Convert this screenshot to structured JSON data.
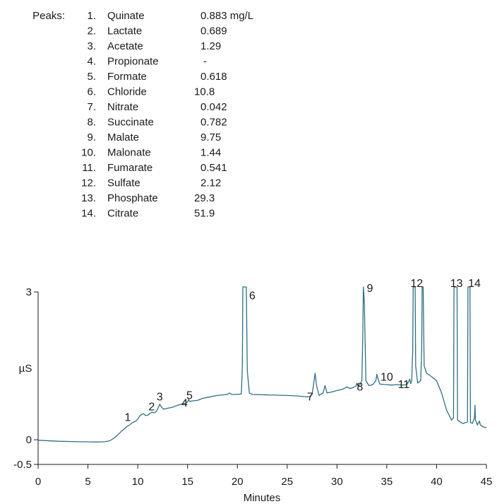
{
  "chart_data": {
    "type": "line",
    "title": "",
    "xlabel": "Minutes",
    "ylabel": "µS",
    "xlim": [
      0,
      45
    ],
    "ylim": [
      -0.5,
      3
    ],
    "xticks": [
      "0",
      "5",
      "10",
      "15",
      "20",
      "25",
      "30",
      "35",
      "40",
      "45"
    ],
    "yticks": [
      "3",
      "0",
      "-0.5"
    ],
    "grid": false,
    "line_color": "#2f6f83",
    "peaks_title": "Peaks:",
    "peak_table": [
      {
        "number": "1.",
        "name": "Quinate",
        "amount": "0.883 mg/L"
      },
      {
        "number": "2.",
        "name": "Lactate",
        "amount": "0.689"
      },
      {
        "number": "3.",
        "name": "Acetate",
        "amount": "1.29"
      },
      {
        "number": "4.",
        "name": "Propionate",
        "amount": "-"
      },
      {
        "number": "5.",
        "name": "Formate",
        "amount": "0.618"
      },
      {
        "number": "6.",
        "name": "Chloride",
        "amount": "10.8"
      },
      {
        "number": "7.",
        "name": "Nitrate",
        "amount": "0.042"
      },
      {
        "number": "8.",
        "name": "Succinate",
        "amount": "0.782"
      },
      {
        "number": "9.",
        "name": "Malate",
        "amount": "9.75"
      },
      {
        "number": "10.",
        "name": "Malonate",
        "amount": "1.44"
      },
      {
        "number": "11.",
        "name": "Fumarate",
        "amount": "0.541"
      },
      {
        "number": "12.",
        "name": "Sulfate",
        "amount": "2.12"
      },
      {
        "number": "13.",
        "name": "Phosphate",
        "amount": "29.3"
      },
      {
        "number": "14.",
        "name": "Citrate",
        "amount": "51.9"
      }
    ],
    "peak_labels": [
      {
        "label": "1",
        "x": 9.0,
        "y": 0.38
      },
      {
        "label": "2",
        "x": 11.4,
        "y": 0.6
      },
      {
        "label": "3",
        "x": 12.2,
        "y": 0.8
      },
      {
        "label": "4",
        "x": 14.7,
        "y": 0.67
      },
      {
        "label": "5",
        "x": 15.2,
        "y": 0.83
      },
      {
        "label": "6",
        "x": 21.5,
        "y": 2.85
      },
      {
        "label": "7",
        "x": 27.3,
        "y": 0.8
      },
      {
        "label": "8",
        "x": 32.3,
        "y": 1.0
      },
      {
        "label": "9",
        "x": 33.3,
        "y": 3.0
      },
      {
        "label": "10",
        "x": 35.0,
        "y": 1.2
      },
      {
        "label": "11",
        "x": 36.7,
        "y": 1.05
      },
      {
        "label": "12",
        "x": 38.0,
        "y": 3.1
      },
      {
        "label": "13",
        "x": 42.0,
        "y": 3.1
      },
      {
        "label": "14",
        "x": 43.8,
        "y": 3.1
      }
    ],
    "series": [
      {
        "points": [
          [
            0.0,
            -0.01
          ],
          [
            2.0,
            -0.03
          ],
          [
            4.0,
            -0.04
          ],
          [
            6.0,
            -0.045
          ],
          [
            6.7,
            -0.04
          ],
          [
            7.2,
            -0.02
          ],
          [
            7.6,
            0.03
          ],
          [
            8.0,
            0.1
          ],
          [
            8.4,
            0.18
          ],
          [
            8.8,
            0.25
          ],
          [
            9.0,
            0.28
          ],
          [
            9.2,
            0.3
          ],
          [
            9.4,
            0.34
          ],
          [
            9.6,
            0.36
          ],
          [
            9.8,
            0.38
          ],
          [
            10.0,
            0.42
          ],
          [
            10.2,
            0.48
          ],
          [
            10.4,
            0.52
          ],
          [
            10.6,
            0.53
          ],
          [
            10.8,
            0.49
          ],
          [
            11.0,
            0.5
          ],
          [
            11.2,
            0.53
          ],
          [
            11.4,
            0.56
          ],
          [
            11.6,
            0.55
          ],
          [
            11.8,
            0.56
          ],
          [
            12.0,
            0.62
          ],
          [
            12.2,
            0.72
          ],
          [
            12.4,
            0.66
          ],
          [
            12.6,
            0.62
          ],
          [
            13.0,
            0.64
          ],
          [
            13.5,
            0.66
          ],
          [
            14.0,
            0.7
          ],
          [
            14.4,
            0.72
          ],
          [
            14.6,
            0.74
          ],
          [
            14.8,
            0.74
          ],
          [
            15.0,
            0.77
          ],
          [
            15.1,
            0.82
          ],
          [
            15.2,
            0.78
          ],
          [
            15.5,
            0.79
          ],
          [
            16.0,
            0.8
          ],
          [
            16.5,
            0.84
          ],
          [
            17.0,
            0.86
          ],
          [
            18.0,
            0.9
          ],
          [
            19.0,
            0.92
          ],
          [
            19.2,
            0.95
          ],
          [
            19.4,
            0.92
          ],
          [
            20.0,
            0.92
          ],
          [
            20.4,
            0.93
          ],
          [
            20.5,
            1.5
          ],
          [
            20.55,
            3.1
          ],
          [
            20.9,
            3.1
          ],
          [
            21.0,
            1.4
          ],
          [
            21.2,
            0.95
          ],
          [
            21.5,
            0.92
          ],
          [
            23.0,
            0.91
          ],
          [
            25.0,
            0.9
          ],
          [
            26.0,
            0.89
          ],
          [
            27.0,
            0.87
          ],
          [
            27.3,
            0.88
          ],
          [
            27.5,
            0.92
          ],
          [
            27.7,
            1.2
          ],
          [
            27.8,
            1.35
          ],
          [
            27.95,
            1.1
          ],
          [
            28.2,
            0.9
          ],
          [
            28.6,
            0.95
          ],
          [
            28.8,
            1.1
          ],
          [
            29.0,
            0.95
          ],
          [
            29.5,
            0.97
          ],
          [
            30.0,
            1.0
          ],
          [
            30.5,
            1.02
          ],
          [
            30.8,
            1.05
          ],
          [
            31.0,
            1.07
          ],
          [
            31.3,
            1.04
          ],
          [
            31.6,
            1.06
          ],
          [
            31.9,
            1.09
          ],
          [
            32.0,
            1.15
          ],
          [
            32.1,
            1.09
          ],
          [
            32.3,
            1.12
          ],
          [
            32.5,
            1.2
          ],
          [
            32.6,
            2.2
          ],
          [
            32.65,
            3.1
          ],
          [
            32.75,
            2.8
          ],
          [
            32.9,
            1.2
          ],
          [
            33.2,
            1.1
          ],
          [
            33.6,
            1.12
          ],
          [
            33.9,
            1.2
          ],
          [
            34.0,
            1.33
          ],
          [
            34.1,
            1.25
          ],
          [
            34.3,
            1.13
          ],
          [
            35.0,
            1.12
          ],
          [
            35.5,
            1.11
          ],
          [
            36.0,
            1.12
          ],
          [
            36.5,
            1.11
          ],
          [
            37.0,
            1.12
          ],
          [
            37.2,
            1.18
          ],
          [
            37.3,
            1.23
          ],
          [
            37.4,
            1.14
          ],
          [
            37.5,
            1.2
          ],
          [
            37.6,
            1.8
          ],
          [
            37.65,
            3.1
          ],
          [
            37.85,
            3.1
          ],
          [
            37.9,
            1.5
          ],
          [
            38.1,
            1.15
          ],
          [
            38.4,
            1.2
          ],
          [
            38.5,
            1.8
          ],
          [
            38.55,
            3.1
          ],
          [
            38.65,
            3.1
          ],
          [
            38.75,
            1.5
          ],
          [
            39.0,
            1.35
          ],
          [
            39.5,
            1.28
          ],
          [
            40.0,
            1.2
          ],
          [
            40.5,
            0.95
          ],
          [
            41.0,
            0.6
          ],
          [
            41.5,
            0.4
          ],
          [
            41.7,
            0.45
          ],
          [
            41.75,
            3.1
          ],
          [
            42.05,
            3.1
          ],
          [
            42.1,
            0.4
          ],
          [
            42.6,
            0.33
          ],
          [
            43.1,
            0.36
          ],
          [
            43.15,
            3.1
          ],
          [
            43.35,
            3.1
          ],
          [
            43.4,
            0.35
          ],
          [
            43.6,
            0.33
          ],
          [
            43.8,
            0.45
          ],
          [
            43.85,
            0.7
          ],
          [
            43.9,
            0.4
          ],
          [
            44.1,
            0.3
          ],
          [
            44.3,
            0.38
          ],
          [
            44.4,
            0.3
          ],
          [
            44.6,
            0.27
          ],
          [
            44.8,
            0.25
          ],
          [
            45.0,
            0.25
          ]
        ]
      }
    ]
  }
}
